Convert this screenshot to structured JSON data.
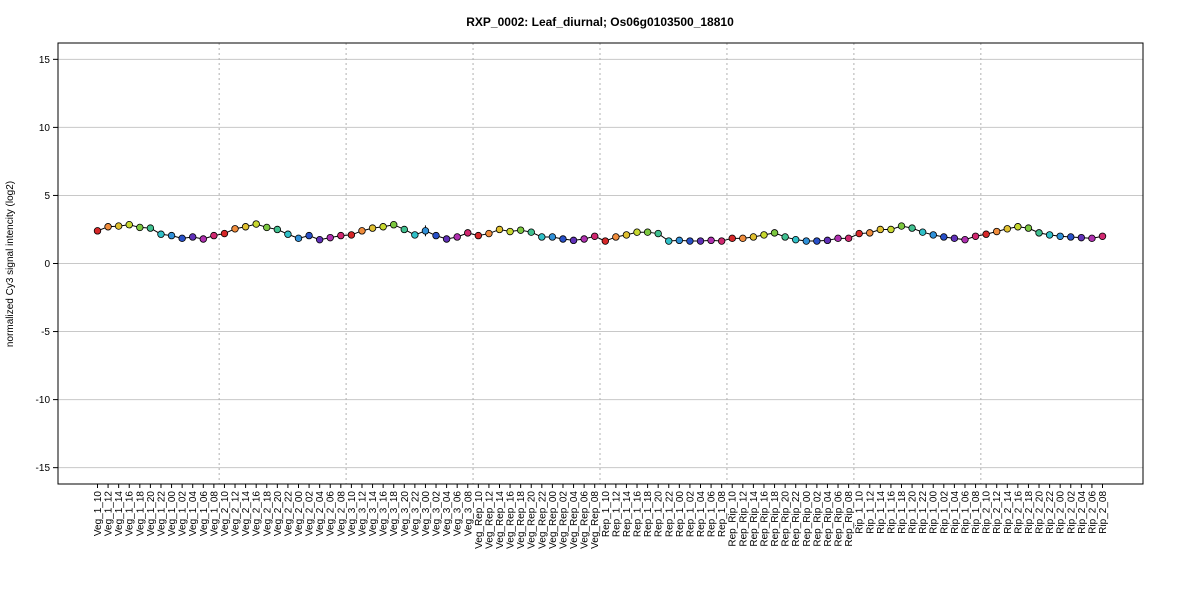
{
  "chart_data": {
    "type": "line",
    "title": "RXP_0002: Leaf_diurnal; Os06g0103500_18810",
    "xlabel": "",
    "ylabel": "normalized Cy3 signal intencity (log2)",
    "ylim": [
      -16.2,
      16.2
    ],
    "yticks": [
      -15,
      -10,
      -5,
      0,
      5,
      10,
      15
    ],
    "grid": true,
    "categories": [
      "Veg_1_10",
      "Veg_1_12",
      "Veg_1_14",
      "Veg_1_16",
      "Veg_1_18",
      "Veg_1_20",
      "Veg_1_22",
      "Veg_1_00",
      "Veg_1_02",
      "Veg_1_04",
      "Veg_1_06",
      "Veg_1_08",
      "Veg_2_10",
      "Veg_2_12",
      "Veg_2_14",
      "Veg_2_16",
      "Veg_2_18",
      "Veg_2_20",
      "Veg_2_22",
      "Veg_2_00",
      "Veg_2_02",
      "Veg_2_04",
      "Veg_2_06",
      "Veg_2_08",
      "Veg_3_10",
      "Veg_3_12",
      "Veg_3_14",
      "Veg_3_16",
      "Veg_3_18",
      "Veg_3_20",
      "Veg_3_22",
      "Veg_3_00",
      "Veg_3_02",
      "Veg_3_04",
      "Veg_3_06",
      "Veg_3_08",
      "Veg_Rep_10",
      "Veg_Rep_12",
      "Veg_Rep_14",
      "Veg_Rep_16",
      "Veg_Rep_18",
      "Veg_Rep_20",
      "Veg_Rep_22",
      "Veg_Rep_00",
      "Veg_Rep_02",
      "Veg_Rep_04",
      "Veg_Rep_06",
      "Veg_Rep_08",
      "Rep_1_10",
      "Rep_1_12",
      "Rep_1_14",
      "Rep_1_16",
      "Rep_1_18",
      "Rep_1_20",
      "Rep_1_22",
      "Rep_1_00",
      "Rep_1_02",
      "Rep_1_04",
      "Rep_1_06",
      "Rep_1_08",
      "Rep_Rip_10",
      "Rep_Rip_12",
      "Rep_Rip_14",
      "Rep_Rip_16",
      "Rep_Rip_18",
      "Rep_Rip_20",
      "Rep_Rip_22",
      "Rep_Rip_00",
      "Rep_Rip_02",
      "Rep_Rip_04",
      "Rep_Rip_06",
      "Rep_Rip_08",
      "Rip_1_10",
      "Rip_1_12",
      "Rip_1_14",
      "Rip_1_16",
      "Rip_1_18",
      "Rip_1_20",
      "Rip_1_22",
      "Rip_1_00",
      "Rip_1_02",
      "Rip_1_04",
      "Rip_1_06",
      "Rip_1_08",
      "Rip_2_10",
      "Rip_2_12",
      "Rip_2_14",
      "Rip_2_16",
      "Rip_2_18",
      "Rip_2_20",
      "Rip_2_22",
      "Rip_2_00",
      "Rip_2_02",
      "Rip_2_04",
      "Rip_2_06",
      "Rip_2_08"
    ],
    "values": [
      2.4,
      2.7,
      2.75,
      2.85,
      2.65,
      2.6,
      2.15,
      2.05,
      1.85,
      1.95,
      1.8,
      2.05,
      2.2,
      2.55,
      2.7,
      2.9,
      2.65,
      2.5,
      2.15,
      1.85,
      2.05,
      1.75,
      1.9,
      2.05,
      2.1,
      2.4,
      2.6,
      2.7,
      2.85,
      2.5,
      2.1,
      2.4,
      2.05,
      1.8,
      1.95,
      2.25,
      2.05,
      2.2,
      2.5,
      2.35,
      2.45,
      2.3,
      1.95,
      1.95,
      1.8,
      1.7,
      1.8,
      2.0,
      1.65,
      1.95,
      2.1,
      2.3,
      2.3,
      2.2,
      1.65,
      1.7,
      1.65,
      1.65,
      1.7,
      1.65,
      1.85,
      1.85,
      1.95,
      2.1,
      2.25,
      1.95,
      1.75,
      1.65,
      1.65,
      1.7,
      1.85,
      1.85,
      2.2,
      2.25,
      2.5,
      2.5,
      2.75,
      2.6,
      2.3,
      2.1,
      1.95,
      1.85,
      1.75,
      2.0,
      2.15,
      2.35,
      2.55,
      2.7,
      2.6,
      2.25,
      2.1,
      2.0,
      1.95,
      1.9,
      1.85,
      2.0
    ],
    "errors": [
      0.1,
      0.1,
      0.1,
      0.1,
      0.1,
      0.1,
      0.1,
      0.1,
      0.1,
      0.25,
      0.1,
      0.1,
      0.1,
      0.1,
      0.1,
      0.1,
      0.1,
      0.1,
      0.1,
      0.1,
      0.1,
      0.1,
      0.1,
      0.1,
      0.1,
      0.1,
      0.1,
      0.1,
      0.1,
      0.1,
      0.1,
      0.4,
      0.2,
      0.1,
      0.1,
      0.1,
      0.1,
      0.1,
      0.1,
      0.1,
      0.1,
      0.1,
      0.1,
      0.1,
      0.1,
      0.1,
      0.1,
      0.1,
      0.1,
      0.1,
      0.1,
      0.1,
      0.1,
      0.1,
      0.1,
      0.1,
      0.1,
      0.1,
      0.1,
      0.1,
      0.1,
      0.1,
      0.1,
      0.1,
      0.1,
      0.1,
      0.1,
      0.1,
      0.1,
      0.1,
      0.1,
      0.1,
      0.1,
      0.1,
      0.1,
      0.1,
      0.1,
      0.1,
      0.1,
      0.1,
      0.1,
      0.1,
      0.1,
      0.1,
      0.1,
      0.1,
      0.1,
      0.25,
      0.1,
      0.1,
      0.1,
      0.1,
      0.1,
      0.1,
      0.1,
      0.1
    ],
    "group_size": 12,
    "point_colors": [
      "#d62728",
      "#f08c3c",
      "#e0c030",
      "#c8d830",
      "#7cc840",
      "#40c090",
      "#30c0c8",
      "#3090d8",
      "#2850c8",
      "#6030b8",
      "#b030b0",
      "#d02870"
    ],
    "line_color": "#000000"
  }
}
